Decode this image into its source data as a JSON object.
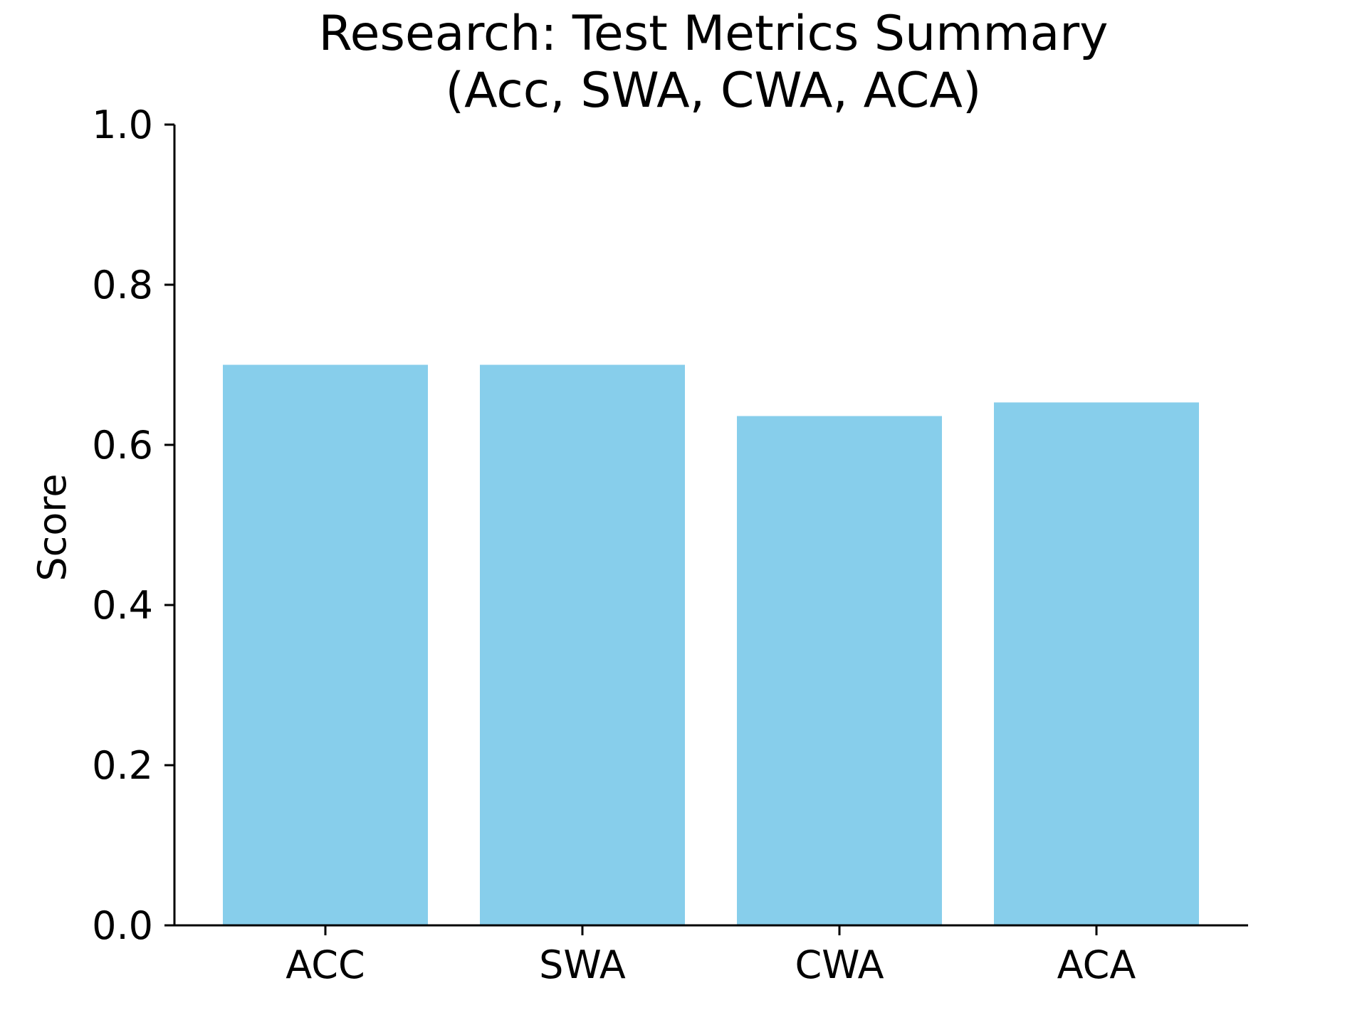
{
  "chart_data": {
    "type": "bar",
    "title_lines": [
      "Research: Test Metrics Summary",
      "(Acc, SWA, CWA, ACA)"
    ],
    "xlabel": "",
    "ylabel": "Score",
    "categories": [
      "ACC",
      "SWA",
      "CWA",
      "ACA"
    ],
    "values": [
      0.7,
      0.7,
      0.636,
      0.653
    ],
    "ylim": [
      0,
      1.0
    ],
    "yticks": [
      0.0,
      0.2,
      0.4,
      0.6,
      0.8,
      1.0
    ],
    "ytick_labels": [
      "0.0",
      "0.2",
      "0.4",
      "0.6",
      "0.8",
      "1.0"
    ],
    "bar_color": "#87CEEB",
    "grid": false,
    "legend": "none"
  }
}
